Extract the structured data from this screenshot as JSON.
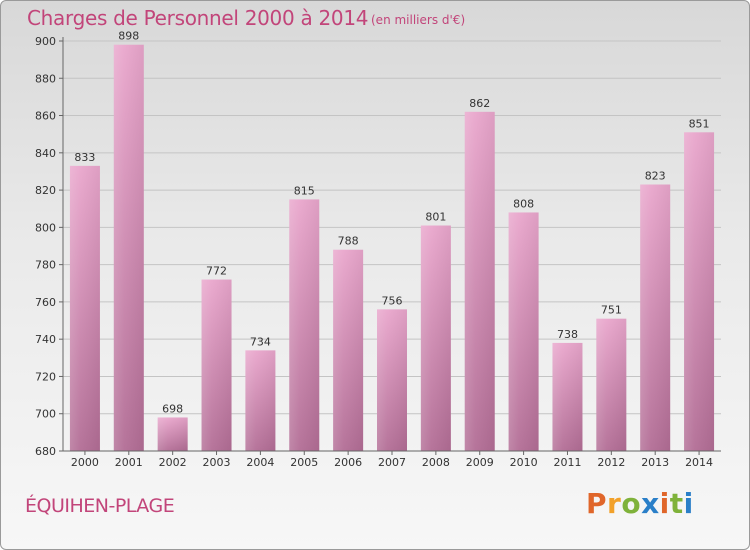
{
  "header": {
    "title": "Charges de Personnel 2000 à 2014",
    "unit_note": "(en milliers d'€)"
  },
  "footer": {
    "commune": "ÉQUIHEN-PLAGE",
    "logo_text": "Proxiti",
    "logo_colors": [
      "#e0662a",
      "#f2a12a",
      "#7fb23a",
      "#2a7fc8",
      "#e0662a",
      "#7fb23a",
      "#2a7fc8"
    ]
  },
  "chart_data": {
    "type": "bar",
    "title": "Charges de Personnel 2000 à 2014",
    "subtitle": "(en milliers d'€)",
    "categories": [
      "2000",
      "2001",
      "2002",
      "2003",
      "2004",
      "2005",
      "2006",
      "2007",
      "2008",
      "2009",
      "2010",
      "2011",
      "2012",
      "2013",
      "2014"
    ],
    "values": [
      833,
      898,
      698,
      772,
      734,
      815,
      788,
      756,
      801,
      862,
      808,
      738,
      751,
      823,
      851
    ],
    "ylim": [
      680,
      900
    ],
    "yticks": [
      680,
      700,
      720,
      740,
      760,
      780,
      800,
      820,
      840,
      860,
      880,
      900
    ],
    "grid": true,
    "bar_color_top": "#e9a6cc",
    "bar_color_bottom": "#b26d95"
  }
}
